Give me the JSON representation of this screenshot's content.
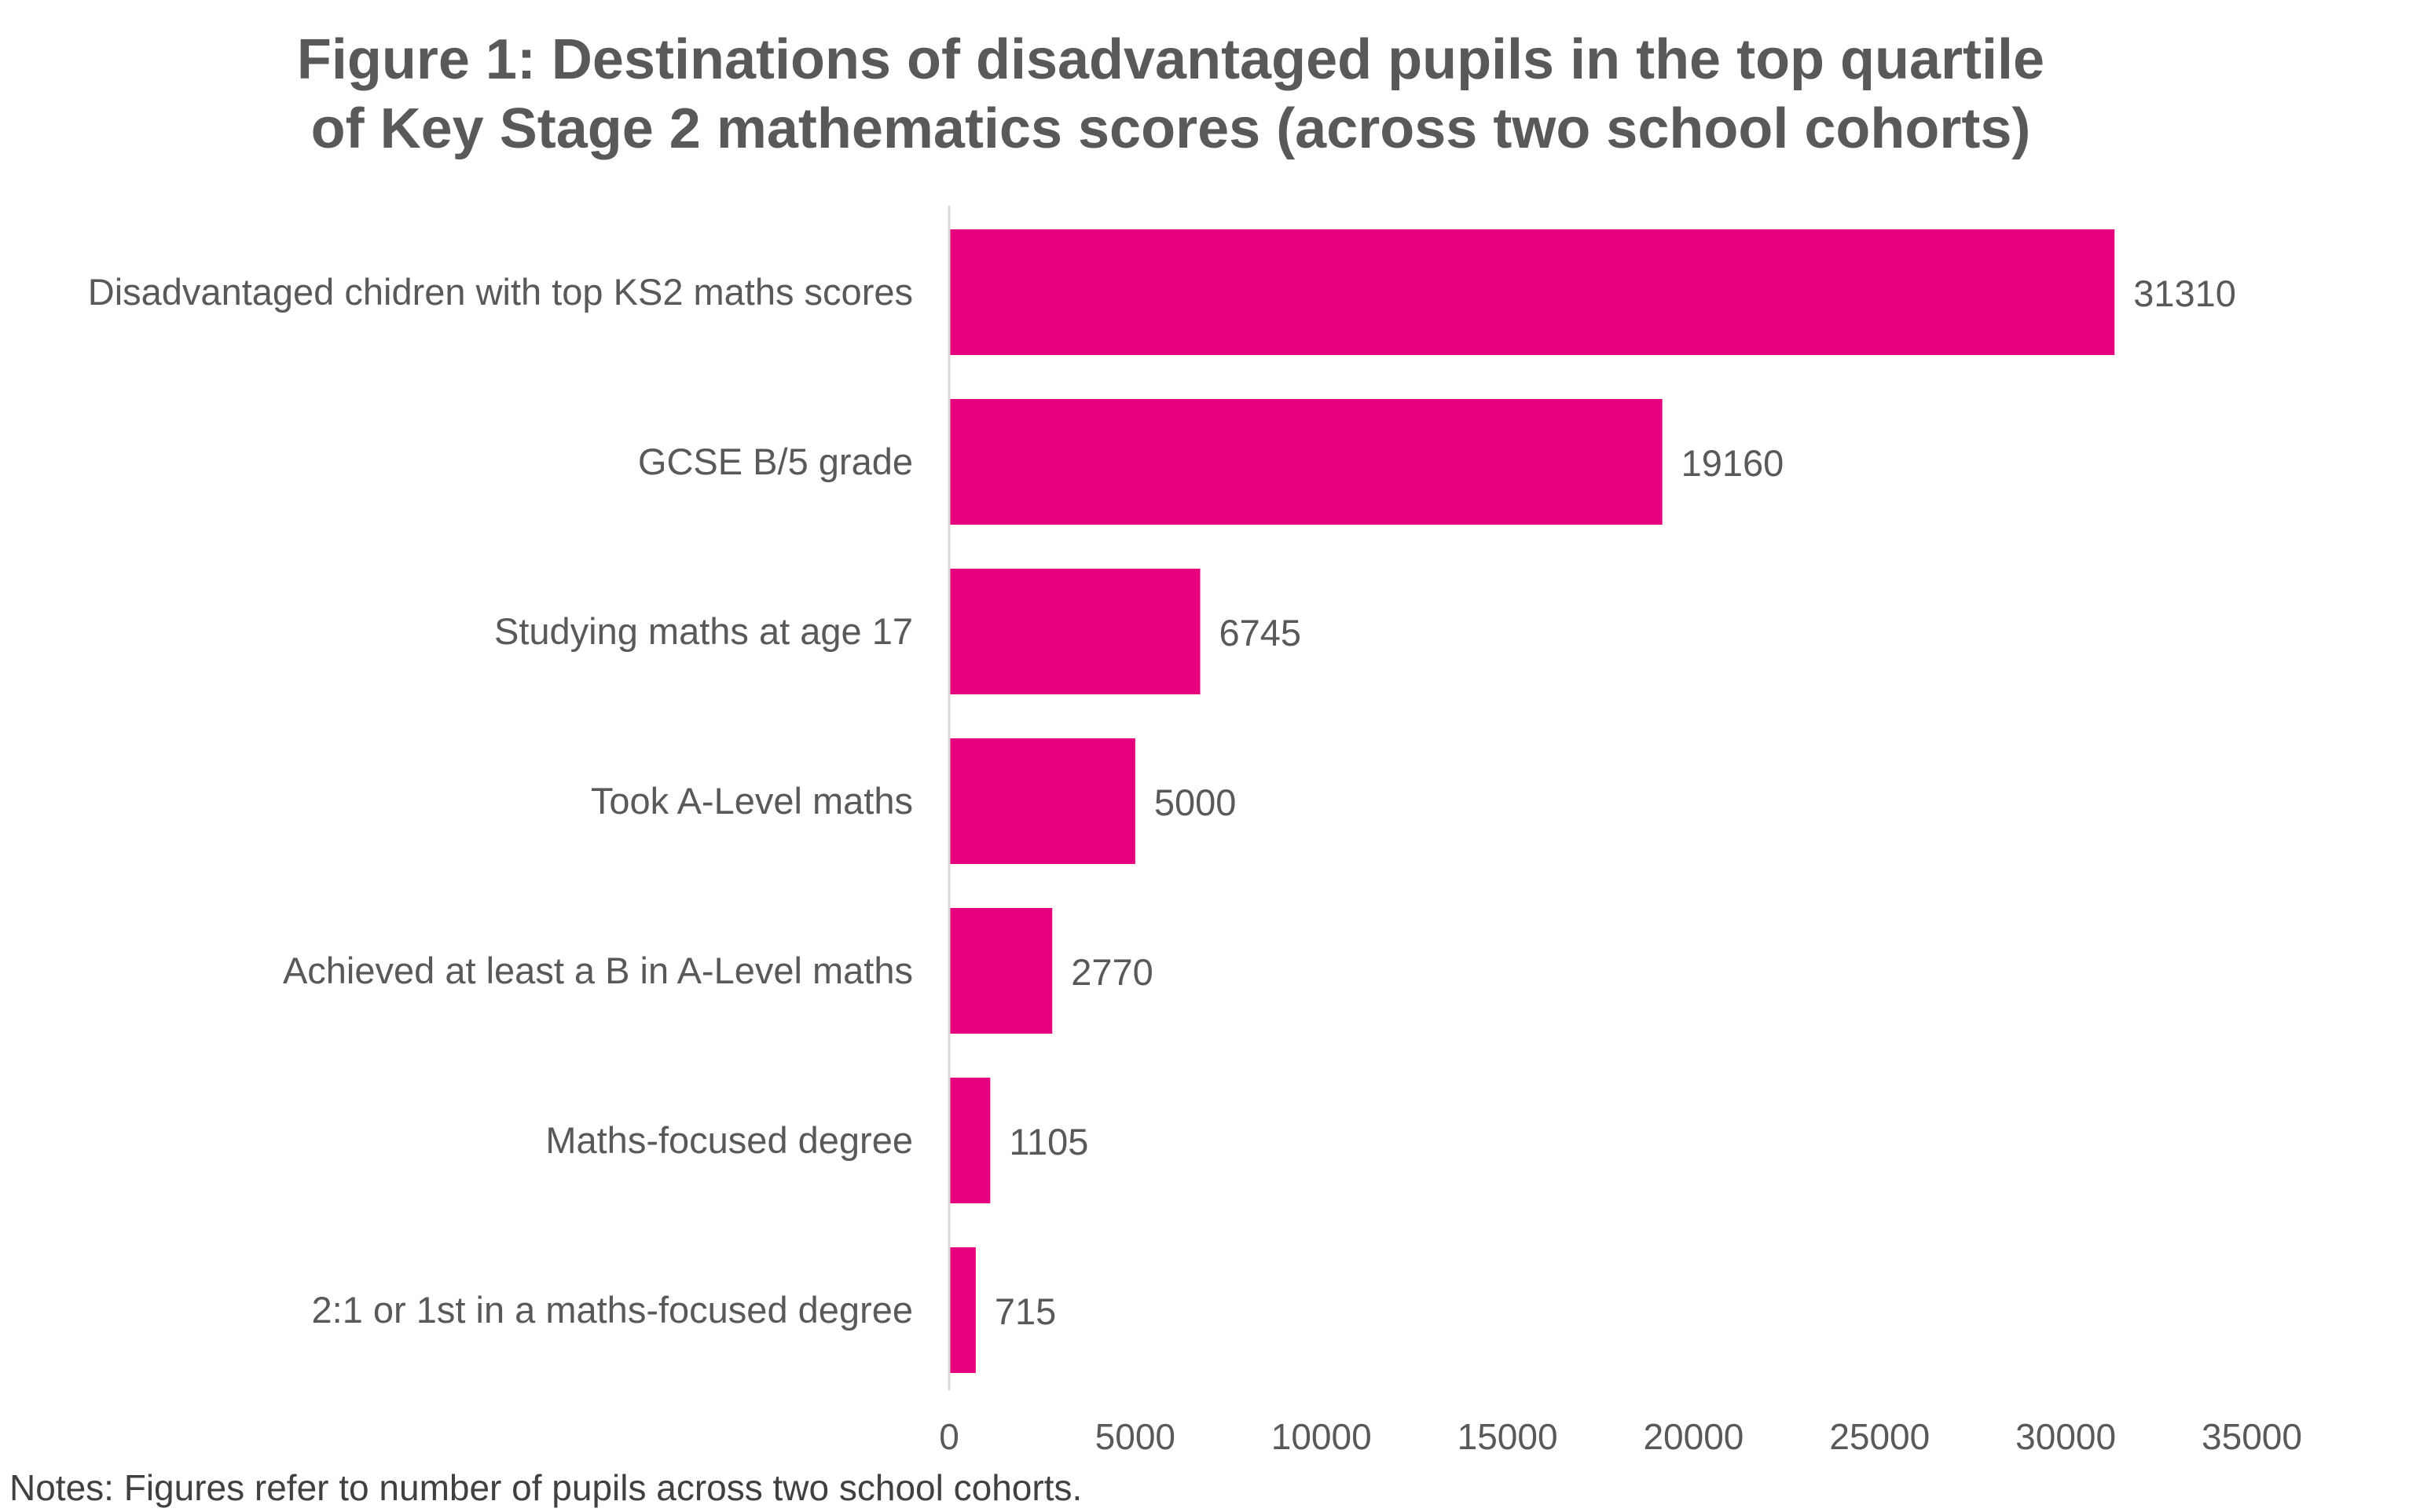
{
  "colors": {
    "bar": "#E6007E",
    "axis": "#D9D9D9",
    "text": "#595959"
  },
  "chart_data": {
    "type": "bar",
    "orientation": "horizontal",
    "title_lines": [
      "Figure 1: Destinations of disadvantaged pupils in the top quartile",
      "of Key Stage 2 mathematics scores (across two school cohorts)"
    ],
    "categories": [
      "Disadvantaged chidren with top KS2 maths scores",
      "GCSE B/5 grade",
      "Studying maths at age 17",
      "Took A-Level maths",
      "Achieved at least a B in A-Level maths",
      "Maths-focused degree",
      "2:1 or 1st in a maths-focused degree"
    ],
    "values": [
      31310,
      19160,
      6745,
      5000,
      2770,
      1105,
      715
    ],
    "value_labels": [
      "31310",
      "19160",
      "6745",
      "5000",
      "2770",
      "1105",
      "715"
    ],
    "xlim": [
      0,
      35000
    ],
    "xticks": [
      0,
      5000,
      10000,
      15000,
      20000,
      25000,
      30000,
      35000
    ],
    "xtick_labels": [
      "0",
      "5000",
      "10000",
      "15000",
      "20000",
      "25000",
      "30000",
      "35000"
    ],
    "grid": false,
    "legend": "none"
  },
  "notes": "Notes: Figures refer to number of pupils across two school cohorts."
}
